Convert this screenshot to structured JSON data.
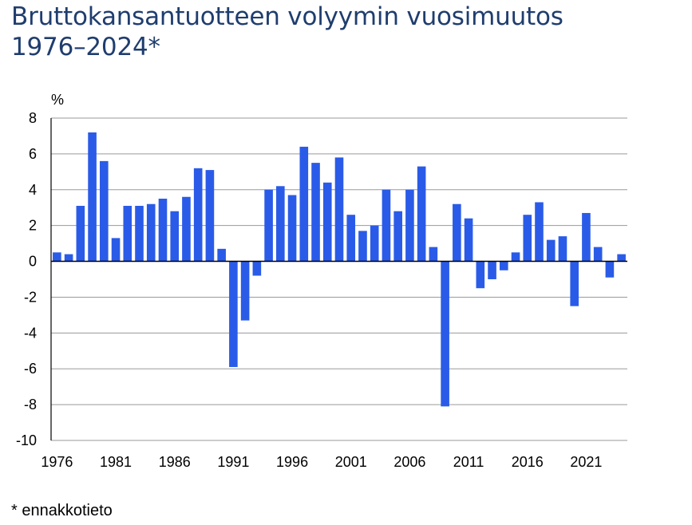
{
  "title_lines": [
    "Bruttokansantuotteen volyymin vuosimuutos",
    "1976–2024*"
  ],
  "footnote": "* ennakkotieto",
  "chart_data": {
    "type": "bar",
    "title": "Bruttokansantuotteen volyymin vuosimuutos 1976–2024*",
    "ylabel": "%",
    "xlabel": "",
    "ylim": [
      -10,
      8
    ],
    "yticks": [
      -10,
      -8,
      -6,
      -4,
      -2,
      0,
      2,
      4,
      6,
      8
    ],
    "xtick_labels": [
      "1976",
      "1981",
      "1986",
      "1991",
      "1996",
      "2001",
      "2006",
      "2011",
      "2016",
      "2021"
    ],
    "grid": true,
    "bar_color": "#2a5be8",
    "categories": [
      1976,
      1977,
      1978,
      1979,
      1980,
      1981,
      1982,
      1983,
      1984,
      1985,
      1986,
      1987,
      1988,
      1989,
      1990,
      1991,
      1992,
      1993,
      1994,
      1995,
      1996,
      1997,
      1998,
      1999,
      2000,
      2001,
      2002,
      2003,
      2004,
      2005,
      2006,
      2007,
      2008,
      2009,
      2010,
      2011,
      2012,
      2013,
      2014,
      2015,
      2016,
      2017,
      2018,
      2019,
      2020,
      2021,
      2022,
      2023,
      2024
    ],
    "values": [
      0.5,
      0.4,
      3.1,
      7.2,
      5.6,
      1.3,
      3.1,
      3.1,
      3.2,
      3.5,
      2.8,
      3.6,
      5.2,
      5.1,
      0.7,
      -5.9,
      -3.3,
      -0.8,
      4.0,
      4.2,
      3.7,
      6.4,
      5.5,
      4.4,
      5.8,
      2.6,
      1.7,
      2.0,
      4.0,
      2.8,
      4.0,
      5.3,
      0.8,
      -8.1,
      3.2,
      2.4,
      -1.5,
      -1.0,
      -0.5,
      0.5,
      2.6,
      3.3,
      1.2,
      1.4,
      -2.5,
      2.7,
      0.8,
      -0.9,
      0.4
    ]
  }
}
